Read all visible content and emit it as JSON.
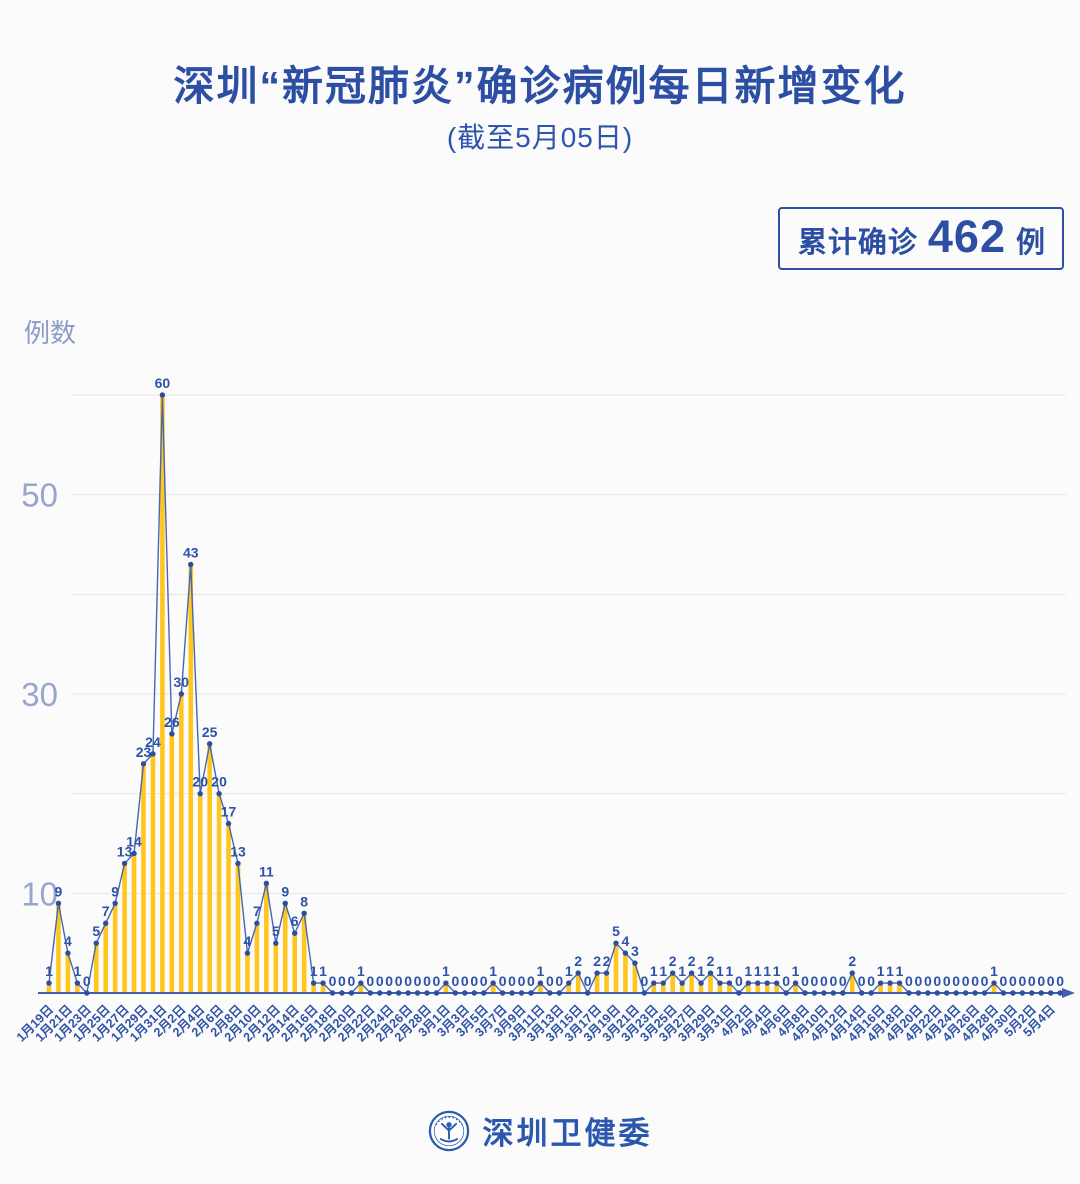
{
  "chart_data": {
    "type": "bar+line",
    "title": "深圳“新冠肺炎”确诊病例每日新增变化",
    "subtitle": "(截至5月05日)",
    "ylabel": "例数",
    "ylim": [
      0,
      60
    ],
    "yticks": [
      10,
      30,
      50
    ],
    "gridline_values": [
      10,
      20,
      30,
      40,
      50,
      60
    ],
    "grid": "on",
    "tick_step": 2,
    "x_tick_labels": [
      "1月19日",
      "1月21日",
      "1月23日",
      "1月25日",
      "1月27日",
      "1月29日",
      "1月31日",
      "2月2日",
      "2月4日",
      "2月6日",
      "2月8日",
      "2月10日",
      "2月12日",
      "2月14日",
      "2月16日",
      "2月18日",
      "2月20日",
      "2月22日",
      "2月24日",
      "2月26日",
      "2月28日",
      "3月1日",
      "3月3日",
      "3月5日",
      "3月7日",
      "3月9日",
      "3月11日",
      "3月13日",
      "3月15日",
      "3月17日",
      "3月19日",
      "3月21日",
      "3月23日",
      "3月25日",
      "3月27日",
      "3月29日",
      "3月31日",
      "4月2日",
      "4月4日",
      "4月6日",
      "4月8日",
      "4月10日",
      "4月12日",
      "4月14日",
      "4月16日",
      "4月18日",
      "4月20日",
      "4月22日",
      "4月24日",
      "4月26日",
      "4月28日",
      "4月30日",
      "5月2日",
      "5月4日"
    ],
    "values": [
      1,
      9,
      4,
      1,
      0,
      5,
      7,
      9,
      13,
      14,
      23,
      24,
      60,
      26,
      30,
      43,
      20,
      25,
      20,
      17,
      13,
      4,
      7,
      11,
      5,
      9,
      6,
      8,
      1,
      1,
      0,
      0,
      0,
      1,
      0,
      0,
      0,
      0,
      0,
      0,
      0,
      0,
      1,
      0,
      0,
      0,
      0,
      1,
      0,
      0,
      0,
      0,
      1,
      0,
      0,
      1,
      2,
      0,
      2,
      2,
      5,
      4,
      3,
      0,
      1,
      1,
      2,
      1,
      2,
      1,
      2,
      1,
      1,
      0,
      1,
      1,
      1,
      1,
      0,
      1,
      0,
      0,
      0,
      0,
      0,
      2,
      0,
      0,
      1,
      1,
      1,
      0,
      0,
      0,
      0,
      0,
      0,
      0,
      0,
      0,
      1,
      0,
      0,
      0,
      0,
      0,
      0,
      0
    ],
    "colors": {
      "bar": "#FFC61E",
      "line": "#4667AF",
      "marker": "#2C4DA1",
      "value_label": "#2C52A9",
      "axis": "#4060AC",
      "x_tick_label": "#2D52A8",
      "y_tick_label": "#99A5CD",
      "grid_line": "#E5E5E7",
      "title": "#2C4FA4"
    }
  },
  "badge": {
    "prefix": "累计确诊",
    "value": "462",
    "suffix": "例"
  },
  "footer": {
    "org_name": "深圳卫健委",
    "logo": "shenzhen-health-commission-emblem"
  }
}
